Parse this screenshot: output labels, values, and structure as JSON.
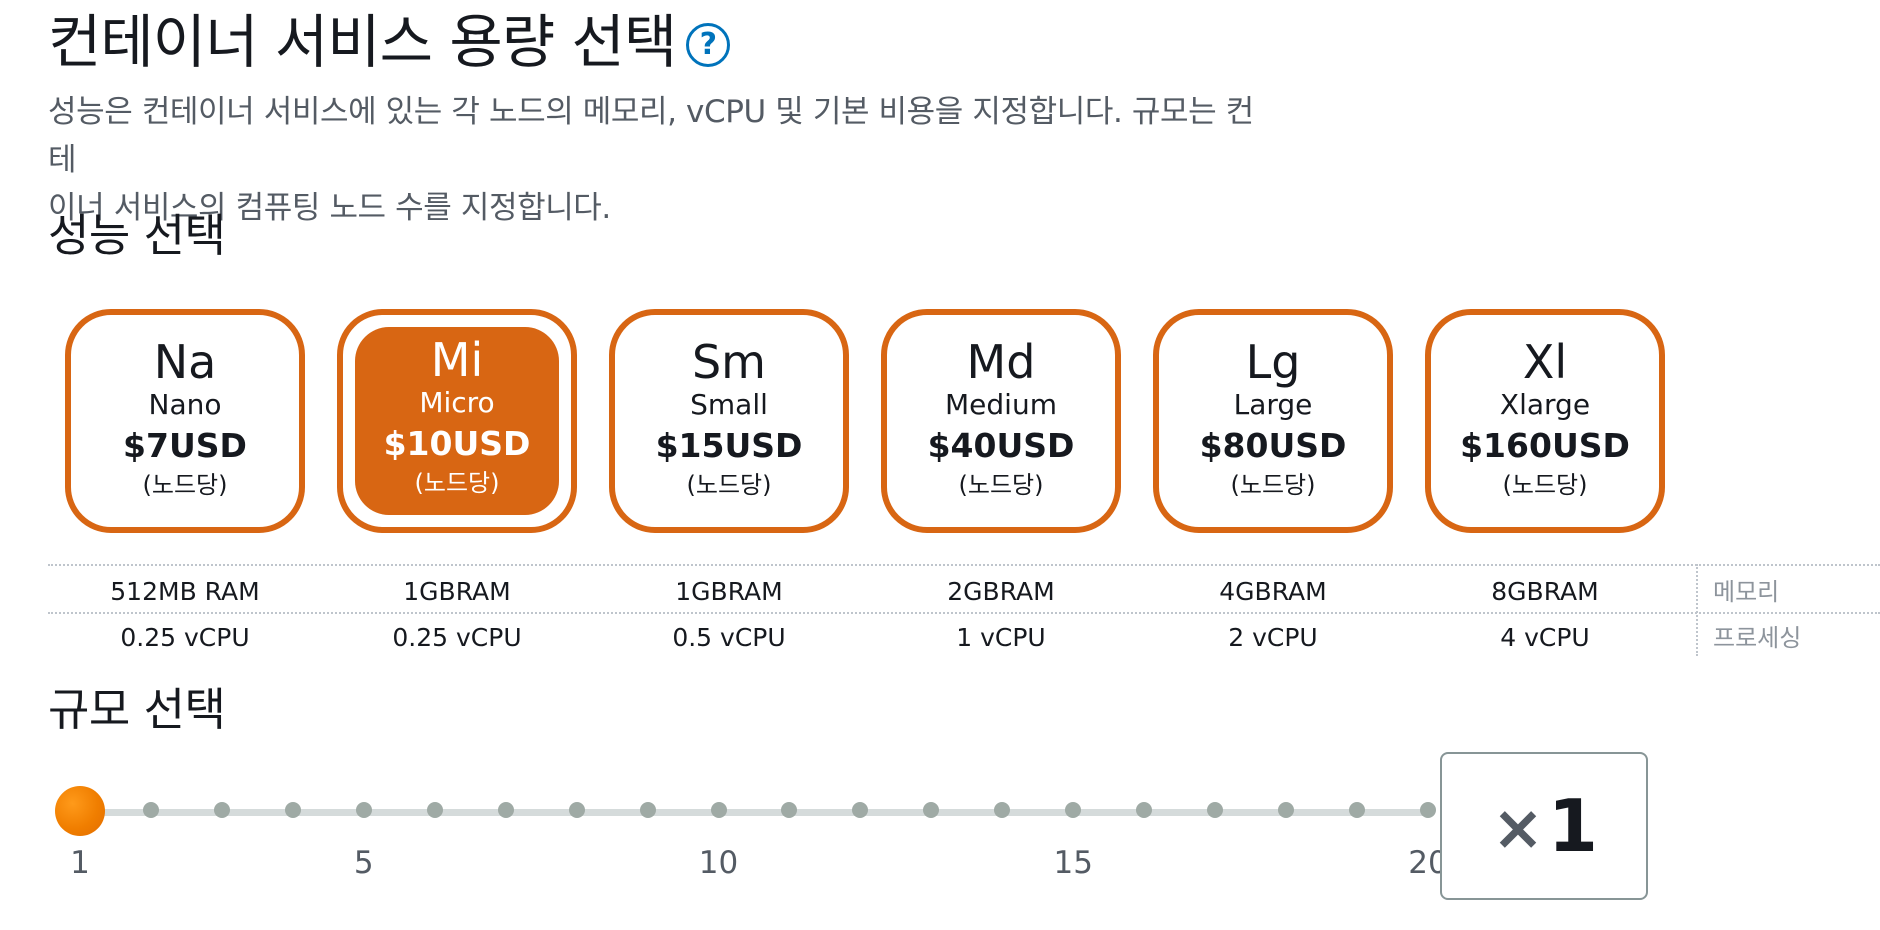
{
  "header": {
    "title": "컨테이너 서비스 용량 선택",
    "help_icon": "?"
  },
  "description": {
    "line_1": "성능은 컨테이너 서비스에 있는 각 노드의 메모리, vCPU 및 기본 비용을 지정합니다. 규모는 컨테",
    "line_2": "이너 서비스의 컴퓨팅 노드 수를 지정합니다."
  },
  "performance": {
    "title": "성능 선택",
    "selected_plan": "Micro",
    "plans": [
      {
        "code": "Na",
        "name": "Nano",
        "price": "$7USD",
        "unit": "(노드당)",
        "memory": "512MB RAM",
        "cpu": "0.25 vCPU"
      },
      {
        "code": "Mi",
        "name": "Micro",
        "price": "$10USD",
        "unit": "(노드당)",
        "memory": "1GBRAM",
        "cpu": "0.25 vCPU"
      },
      {
        "code": "Sm",
        "name": "Small",
        "price": "$15USD",
        "unit": "(노드당)",
        "memory": "1GBRAM",
        "cpu": "0.5 vCPU"
      },
      {
        "code": "Md",
        "name": "Medium",
        "price": "$40USD",
        "unit": "(노드당)",
        "memory": "2GBRAM",
        "cpu": "1 vCPU"
      },
      {
        "code": "Lg",
        "name": "Large",
        "price": "$80USD",
        "unit": "(노드당)",
        "memory": "4GBRAM",
        "cpu": "2 vCPU"
      },
      {
        "code": "Xl",
        "name": "Xlarge",
        "price": "$160USD",
        "unit": "(노드당)",
        "memory": "8GBRAM",
        "cpu": "4 vCPU"
      }
    ],
    "spec_labels": {
      "memory": "메모리",
      "processing": "프로세싱"
    }
  },
  "scale": {
    "title": "규모 선택",
    "min": 1,
    "max": 20,
    "value": 1,
    "tick_labels": [
      "1",
      "5",
      "10",
      "15",
      "20"
    ],
    "multiplier_icon": "×",
    "display_value": "1"
  },
  "colors": {
    "accent": "#d86613",
    "slider_thumb": "#f07e00",
    "help_blue": "#0073bb",
    "text": "#16191f",
    "secondary_text": "#545b64"
  }
}
